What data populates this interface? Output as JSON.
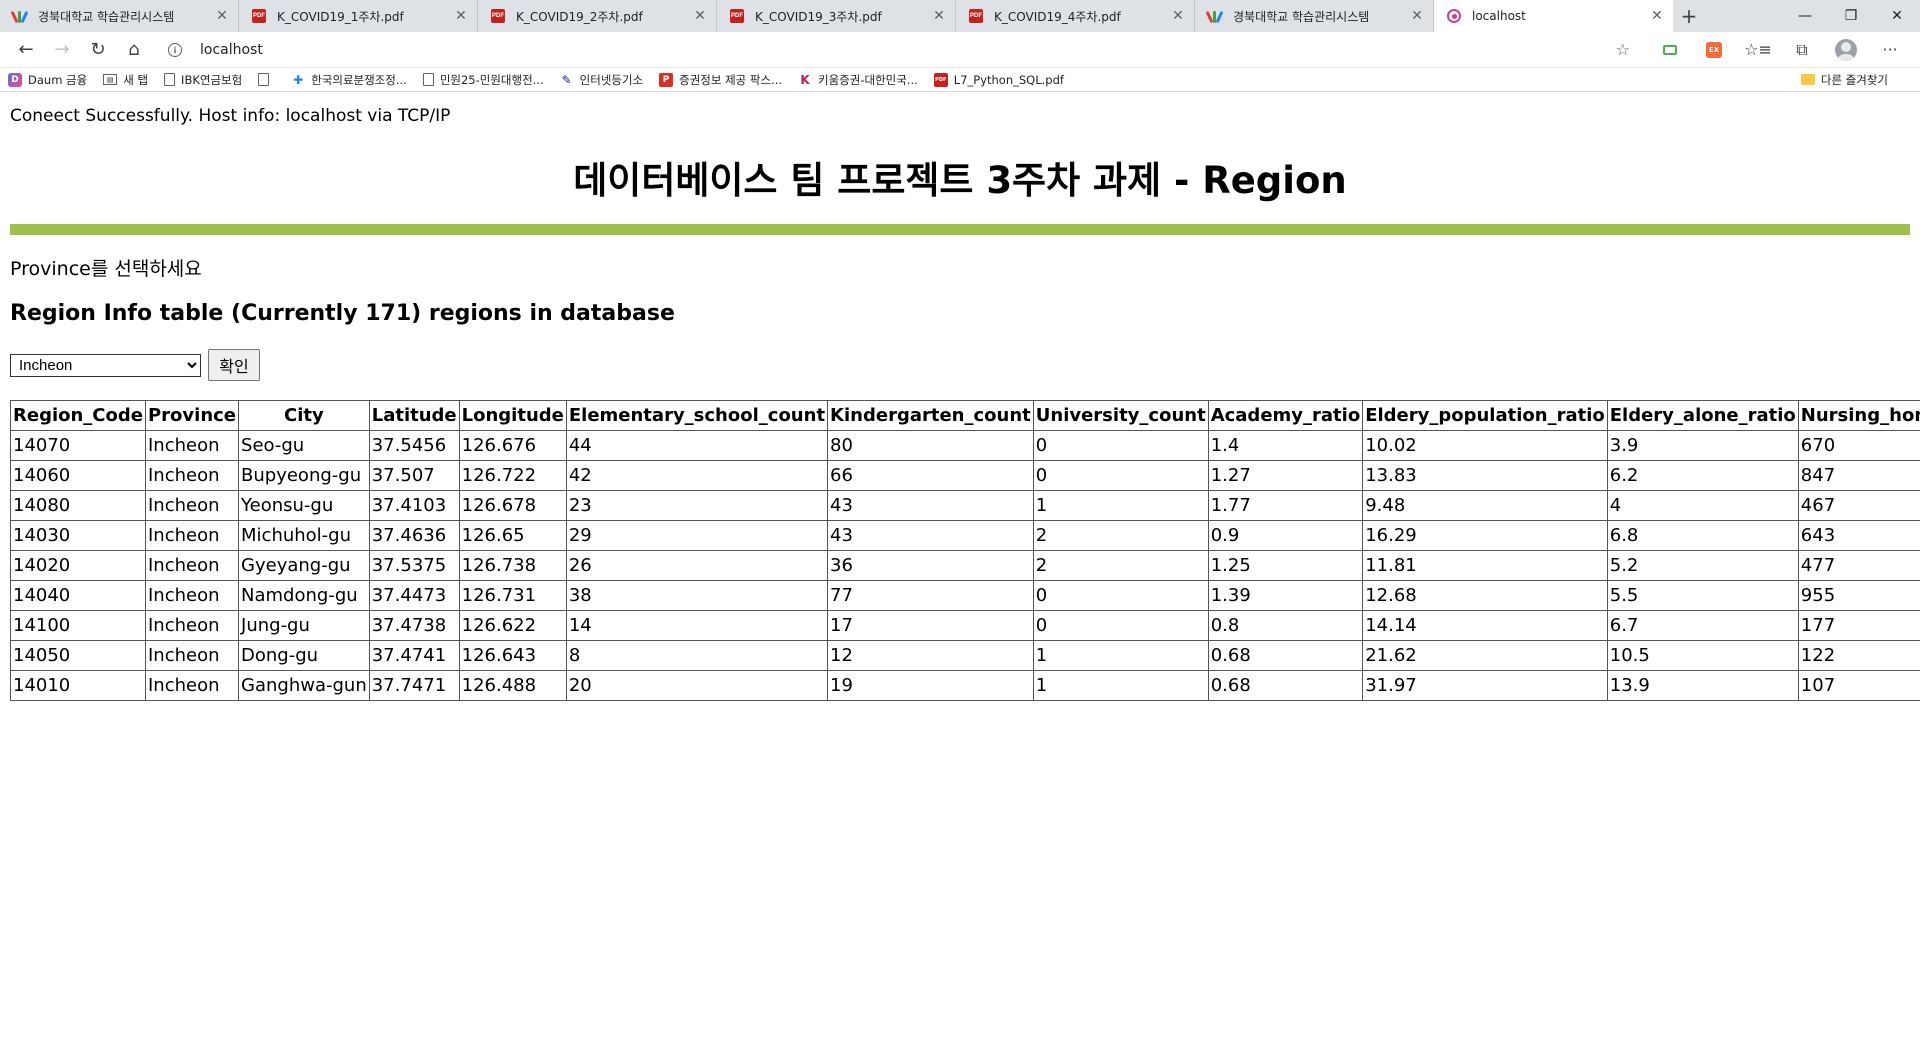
{
  "browser": {
    "tabs": [
      {
        "title": "경북대학교 학습관리시스템",
        "favicon": "knu-icon"
      },
      {
        "title": "K_COVID19_1주차.pdf",
        "favicon": "pdf-icon"
      },
      {
        "title": "K_COVID19_2주차.pdf",
        "favicon": "pdf-icon"
      },
      {
        "title": "K_COVID19_3주차.pdf",
        "favicon": "pdf-icon"
      },
      {
        "title": "K_COVID19_4주차.pdf",
        "favicon": "pdf-icon"
      },
      {
        "title": "경북대학교 학습관리시스템",
        "favicon": "knu-icon"
      },
      {
        "title": "localhost",
        "favicon": "localhost-icon",
        "active": true
      }
    ],
    "address": "localhost",
    "bookmarks": [
      {
        "label": "Daum 금융",
        "icon": "daum-icon"
      },
      {
        "label": "새 탭",
        "icon": "news-icon"
      },
      {
        "label": "IBK연금보험",
        "icon": "page-icon"
      },
      {
        "label": "",
        "icon": "page-icon"
      },
      {
        "label": "한국의료분쟁조정...",
        "icon": "hanguk-icon"
      },
      {
        "label": "민원25-민원대행전...",
        "icon": "page-icon"
      },
      {
        "label": "인터넷등기소",
        "icon": "internet-icon"
      },
      {
        "label": "증권정보 제공 팍스...",
        "icon": "p-icon"
      },
      {
        "label": "키움증권-대한민국...",
        "icon": "kiwoom-icon"
      },
      {
        "label": "L7_Python_SQL.pdf",
        "icon": "pdf-icon"
      }
    ],
    "other_bookmarks": "다른 즐겨찾기"
  },
  "page": {
    "connect_message": "Coneect Successfully. Host info: localhost via TCP/IP",
    "title": "데이터베이스 팀 프로젝트 3주차 과제 - Region",
    "prompt": "Province를 선택하세요",
    "table_heading": "Region Info table (Currently 171) regions in database",
    "province_select": "Incheon",
    "confirm_label": "확인",
    "accent_color": "#9dc14a"
  },
  "table": {
    "columns": [
      "Region_Code",
      "Province",
      "City",
      "Latitude",
      "Longitude",
      "Elementary_school_count",
      "Kindergarten_count",
      "University_count",
      "Academy_ratio",
      "Eldery_population_ratio",
      "Eldery_alone_ratio",
      "Nursing_home_count"
    ],
    "rows": [
      [
        "14070",
        "Incheon",
        "Seo-gu",
        "37.5456",
        "126.676",
        "44",
        "80",
        "0",
        "1.4",
        "10.02",
        "3.9",
        "670"
      ],
      [
        "14060",
        "Incheon",
        "Bupyeong-gu",
        "37.507",
        "126.722",
        "42",
        "66",
        "0",
        "1.27",
        "13.83",
        "6.2",
        "847"
      ],
      [
        "14080",
        "Incheon",
        "Yeonsu-gu",
        "37.4103",
        "126.678",
        "23",
        "43",
        "1",
        "1.77",
        "9.48",
        "4",
        "467"
      ],
      [
        "14030",
        "Incheon",
        "Michuhol-gu",
        "37.4636",
        "126.65",
        "29",
        "43",
        "2",
        "0.9",
        "16.29",
        "6.8",
        "643"
      ],
      [
        "14020",
        "Incheon",
        "Gyeyang-gu",
        "37.5375",
        "126.738",
        "26",
        "36",
        "2",
        "1.25",
        "11.81",
        "5.2",
        "477"
      ],
      [
        "14040",
        "Incheon",
        "Namdong-gu",
        "37.4473",
        "126.731",
        "38",
        "77",
        "0",
        "1.39",
        "12.68",
        "5.5",
        "955"
      ],
      [
        "14100",
        "Incheon",
        "Jung-gu",
        "37.4738",
        "126.622",
        "14",
        "17",
        "0",
        "0.8",
        "14.14",
        "6.7",
        "177"
      ],
      [
        "14050",
        "Incheon",
        "Dong-gu",
        "37.4741",
        "126.643",
        "8",
        "12",
        "1",
        "0.68",
        "21.62",
        "10.5",
        "122"
      ],
      [
        "14010",
        "Incheon",
        "Ganghwa-gun",
        "37.7471",
        "126.488",
        "20",
        "19",
        "1",
        "0.68",
        "31.97",
        "13.9",
        "107"
      ]
    ]
  }
}
